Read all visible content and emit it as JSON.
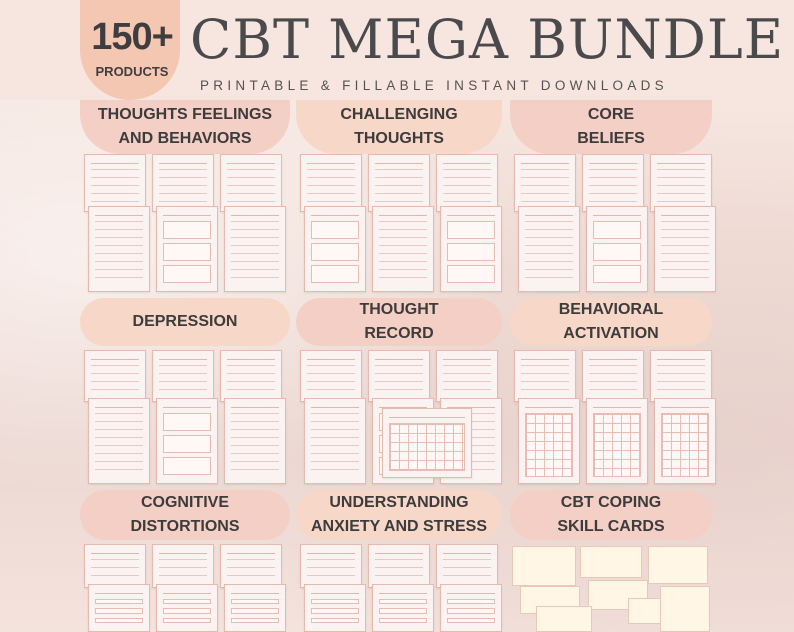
{
  "header": {
    "count": "150+",
    "count_sub": "PRODUCTS",
    "title": "CBT MEGA BUNDLE",
    "subtitle": "PRINTABLE & FILLABLE INSTANT DOWNLOADS"
  },
  "sections": [
    {
      "label": "THOUGHTS FEELINGS\nAND BEHAVIORS"
    },
    {
      "label": "CHALLENGING\nTHOUGHTS"
    },
    {
      "label": "CORE\nBELIEFS"
    },
    {
      "label": "DEPRESSION"
    },
    {
      "label": "THOUGHT\nRECORD"
    },
    {
      "label": "BEHAVIORAL\nACTIVATION"
    },
    {
      "label": "COGNITIVE\nDISTORTIONS"
    },
    {
      "label": "UNDERSTANDING\nANXIETY AND STRESS"
    },
    {
      "label": "CBT COPING\nSKILL CARDS"
    }
  ],
  "colors": {
    "accent": "#f4c7b3",
    "label_pink": "#f4cfc6",
    "label_peach": "#f7d8c8",
    "text": "#3d3b3b"
  }
}
